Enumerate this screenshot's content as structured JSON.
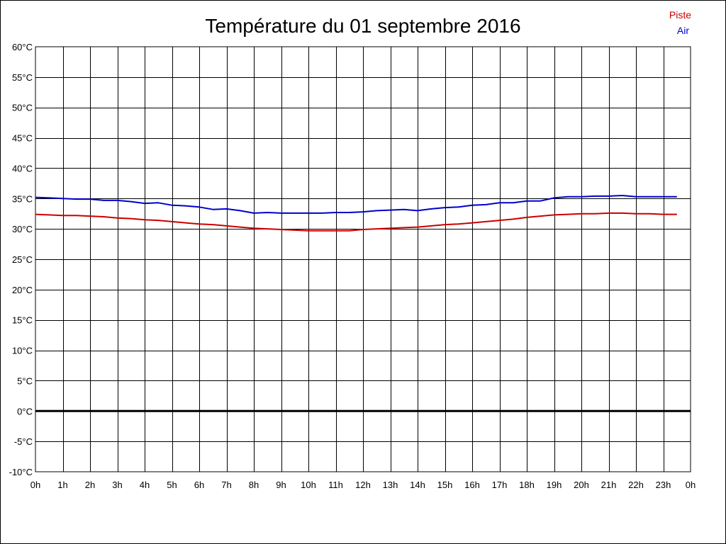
{
  "chart_data": {
    "type": "line",
    "title": "Température du 01 septembre 2016",
    "xlabel": "",
    "ylabel": "",
    "x_tick_labels": [
      "0h",
      "1h",
      "2h",
      "3h",
      "4h",
      "5h",
      "6h",
      "7h",
      "8h",
      "9h",
      "10h",
      "11h",
      "12h",
      "13h",
      "14h",
      "15h",
      "16h",
      "17h",
      "18h",
      "19h",
      "20h",
      "21h",
      "22h",
      "23h",
      "0h"
    ],
    "y_tick_labels": [
      "60°C",
      "55°C",
      "50°C",
      "45°C",
      "40°C",
      "35°C",
      "30°C",
      "25°C",
      "20°C",
      "15°C",
      "10°C",
      "5°C",
      "0°C",
      "-5°C",
      "-10°C"
    ],
    "xlim": [
      0,
      24
    ],
    "ylim": [
      -10,
      60
    ],
    "grid": true,
    "legend_position": "top-right",
    "zero_line": true,
    "series": [
      {
        "name": "Piste",
        "color": "#cc0000",
        "x": [
          0,
          0.5,
          1,
          1.5,
          2,
          2.5,
          3,
          3.5,
          4,
          4.5,
          5,
          5.5,
          6,
          6.5,
          7,
          7.5,
          8,
          8.5,
          9,
          9.5,
          10,
          10.5,
          11,
          11.5,
          12,
          12.5,
          13,
          13.5,
          14,
          14.5,
          15,
          15.5,
          16,
          16.5,
          17,
          17.5,
          18,
          18.5,
          19,
          19.5,
          20,
          20.5,
          21,
          21.5,
          22,
          22.5,
          23,
          23.5
        ],
        "y": [
          32.4,
          32.3,
          32.2,
          32.2,
          32.1,
          32.0,
          31.8,
          31.7,
          31.5,
          31.4,
          31.2,
          31.0,
          30.8,
          30.7,
          30.5,
          30.3,
          30.1,
          30.0,
          29.9,
          29.8,
          29.7,
          29.7,
          29.7,
          29.7,
          29.9,
          30.0,
          30.1,
          30.2,
          30.3,
          30.5,
          30.7,
          30.8,
          31.0,
          31.2,
          31.4,
          31.6,
          31.9,
          32.1,
          32.3,
          32.4,
          32.5,
          32.5,
          32.6,
          32.6,
          32.5,
          32.5,
          32.4,
          32.4
        ]
      },
      {
        "name": "Air",
        "color": "#0000cc",
        "x": [
          0,
          0.5,
          1,
          1.5,
          2,
          2.5,
          3,
          3.5,
          4,
          4.5,
          5,
          5.5,
          6,
          6.5,
          7,
          7.5,
          8,
          8.5,
          9,
          9.5,
          10,
          10.5,
          11,
          11.5,
          12,
          12.5,
          13,
          13.5,
          14,
          14.5,
          15,
          15.5,
          16,
          16.5,
          17,
          17.5,
          18,
          18.5,
          19,
          19.5,
          20,
          20.5,
          21,
          21.5,
          22,
          22.5,
          23,
          23.5
        ],
        "y": [
          35.2,
          35.1,
          35.0,
          34.9,
          34.9,
          34.7,
          34.7,
          34.5,
          34.2,
          34.3,
          33.9,
          33.8,
          33.6,
          33.2,
          33.3,
          33.0,
          32.6,
          32.7,
          32.6,
          32.6,
          32.6,
          32.6,
          32.7,
          32.7,
          32.8,
          33.0,
          33.1,
          33.2,
          33.0,
          33.3,
          33.5,
          33.6,
          33.9,
          34.0,
          34.3,
          34.3,
          34.6,
          34.6,
          35.1,
          35.3,
          35.3,
          35.4,
          35.4,
          35.5,
          35.3,
          35.3,
          35.3,
          35.3
        ]
      }
    ]
  }
}
